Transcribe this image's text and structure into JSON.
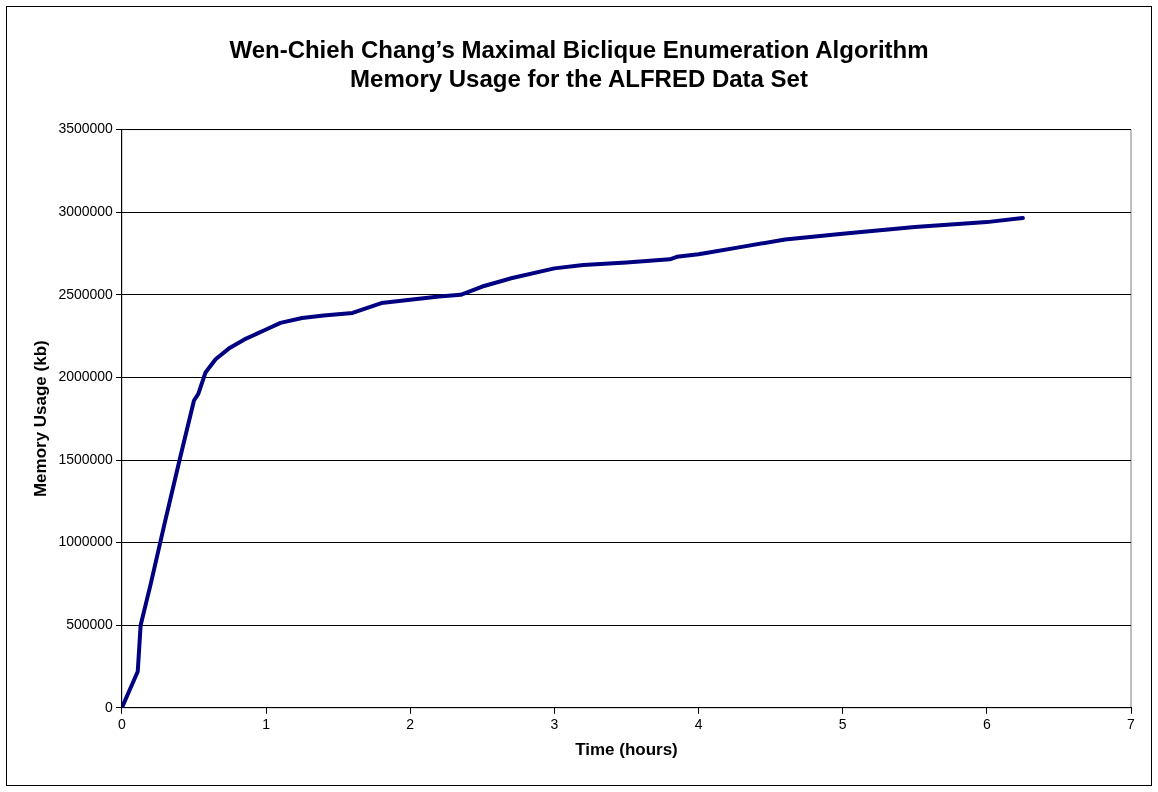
{
  "chart_data": {
    "type": "line",
    "title": "Wen-Chieh Chang’s Maximal Biclique Enumeration Algorithm\nMemory Usage for the ALFRED Data Set",
    "xlabel": "Time (hours)",
    "ylabel": "Memory Usage (kb)",
    "series": [
      {
        "color": "#000080",
        "x": [
          0,
          0.05,
          0.11,
          0.13,
          0.2,
          0.3,
          0.4,
          0.5,
          0.53,
          0.58,
          0.65,
          0.75,
          0.85,
          1.0,
          1.1,
          1.25,
          1.4,
          1.6,
          1.8,
          2.0,
          2.2,
          2.35,
          2.5,
          2.7,
          3.0,
          3.2,
          3.5,
          3.8,
          3.85,
          4.0,
          4.3,
          4.6,
          5.0,
          5.5,
          6.0,
          6.25
        ],
        "values": [
          0,
          100000,
          220000,
          500000,
          750000,
          1130000,
          1500000,
          1860000,
          1900000,
          2030000,
          2110000,
          2180000,
          2230000,
          2290000,
          2330000,
          2360000,
          2375000,
          2390000,
          2450000,
          2470000,
          2490000,
          2500000,
          2550000,
          2600000,
          2660000,
          2680000,
          2695000,
          2715000,
          2730000,
          2745000,
          2790000,
          2835000,
          2870000,
          2910000,
          2940000,
          2965000
        ]
      }
    ],
    "xlim": [
      0,
      7
    ],
    "xticks": [
      0,
      1,
      2,
      3,
      4,
      5,
      6,
      7
    ],
    "ylim": [
      0,
      3500000
    ],
    "yticks": [
      0,
      500000,
      1000000,
      1500000,
      2000000,
      2500000,
      3000000,
      3500000
    ],
    "grid": "y",
    "legend": false,
    "marker": "none",
    "line_style": "solid"
  }
}
